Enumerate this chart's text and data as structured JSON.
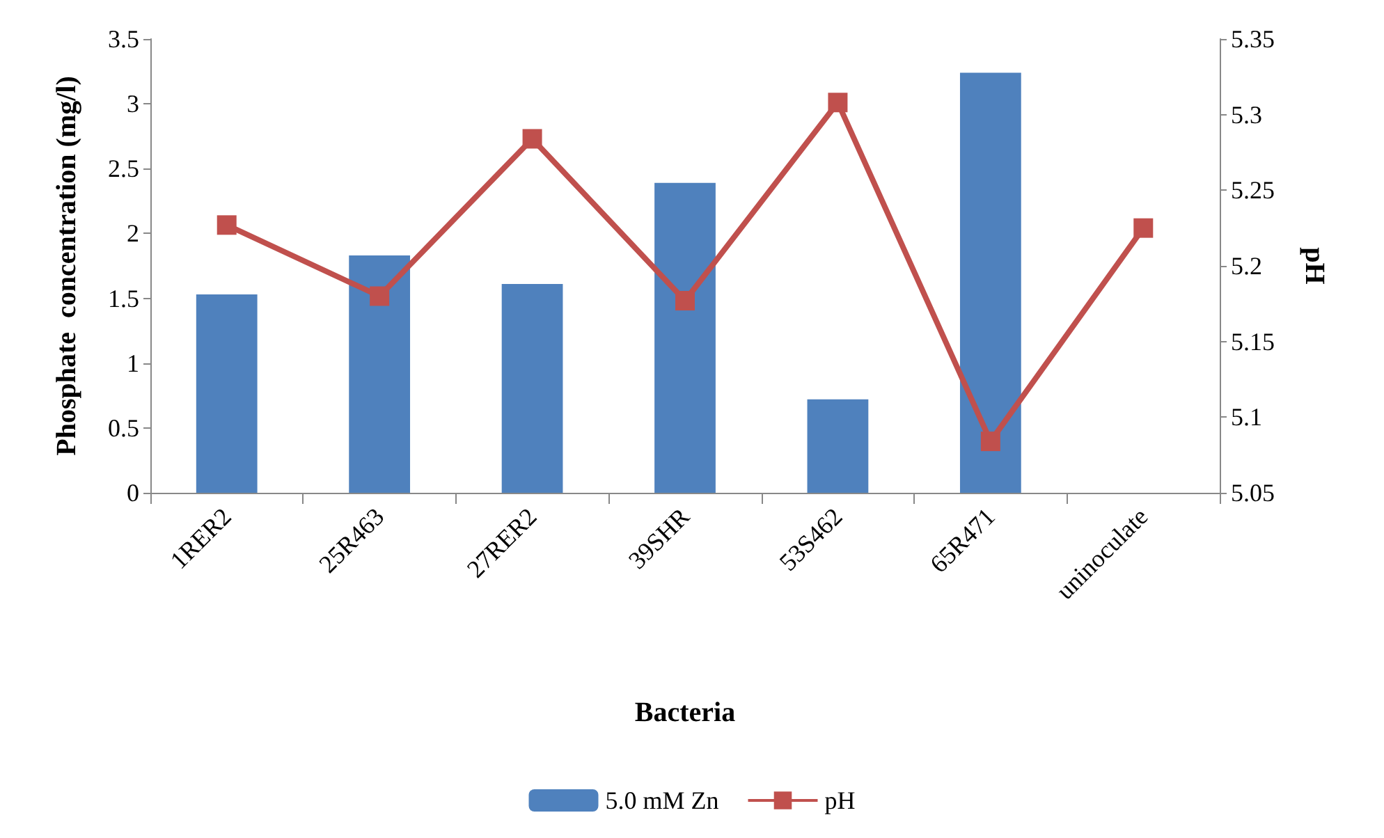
{
  "chart_data": {
    "type": "bar",
    "xlabel": "Bacteria",
    "ylabel": "Phosphate  concentration (mg/l)",
    "y2label": "pH",
    "categories": [
      "1RER2",
      "25R463",
      "27RER2",
      "39SHR",
      "53S462",
      "65R471",
      "uninoculate"
    ],
    "series": [
      {
        "name": "5.0 mM Zn",
        "color": "#4f81bd",
        "values": [
          1.53,
          1.83,
          1.61,
          2.39,
          0.72,
          3.24,
          null
        ]
      },
      {
        "name": "pH",
        "type": "line",
        "axis": "y2",
        "color": "#c0504d",
        "marker": "square",
        "values": [
          5.227,
          5.18,
          5.284,
          5.177,
          5.308,
          5.084,
          5.225
        ]
      }
    ],
    "ylim": [
      0,
      3.5
    ],
    "yticks": [
      0,
      0.5,
      1,
      1.5,
      2,
      2.5,
      3,
      3.5
    ],
    "y2lim": [
      5.05,
      5.35
    ],
    "y2ticks": [
      5.05,
      5.1,
      5.15,
      5.2,
      5.25,
      5.3,
      5.35
    ],
    "grid": false,
    "legend": "bottom"
  }
}
